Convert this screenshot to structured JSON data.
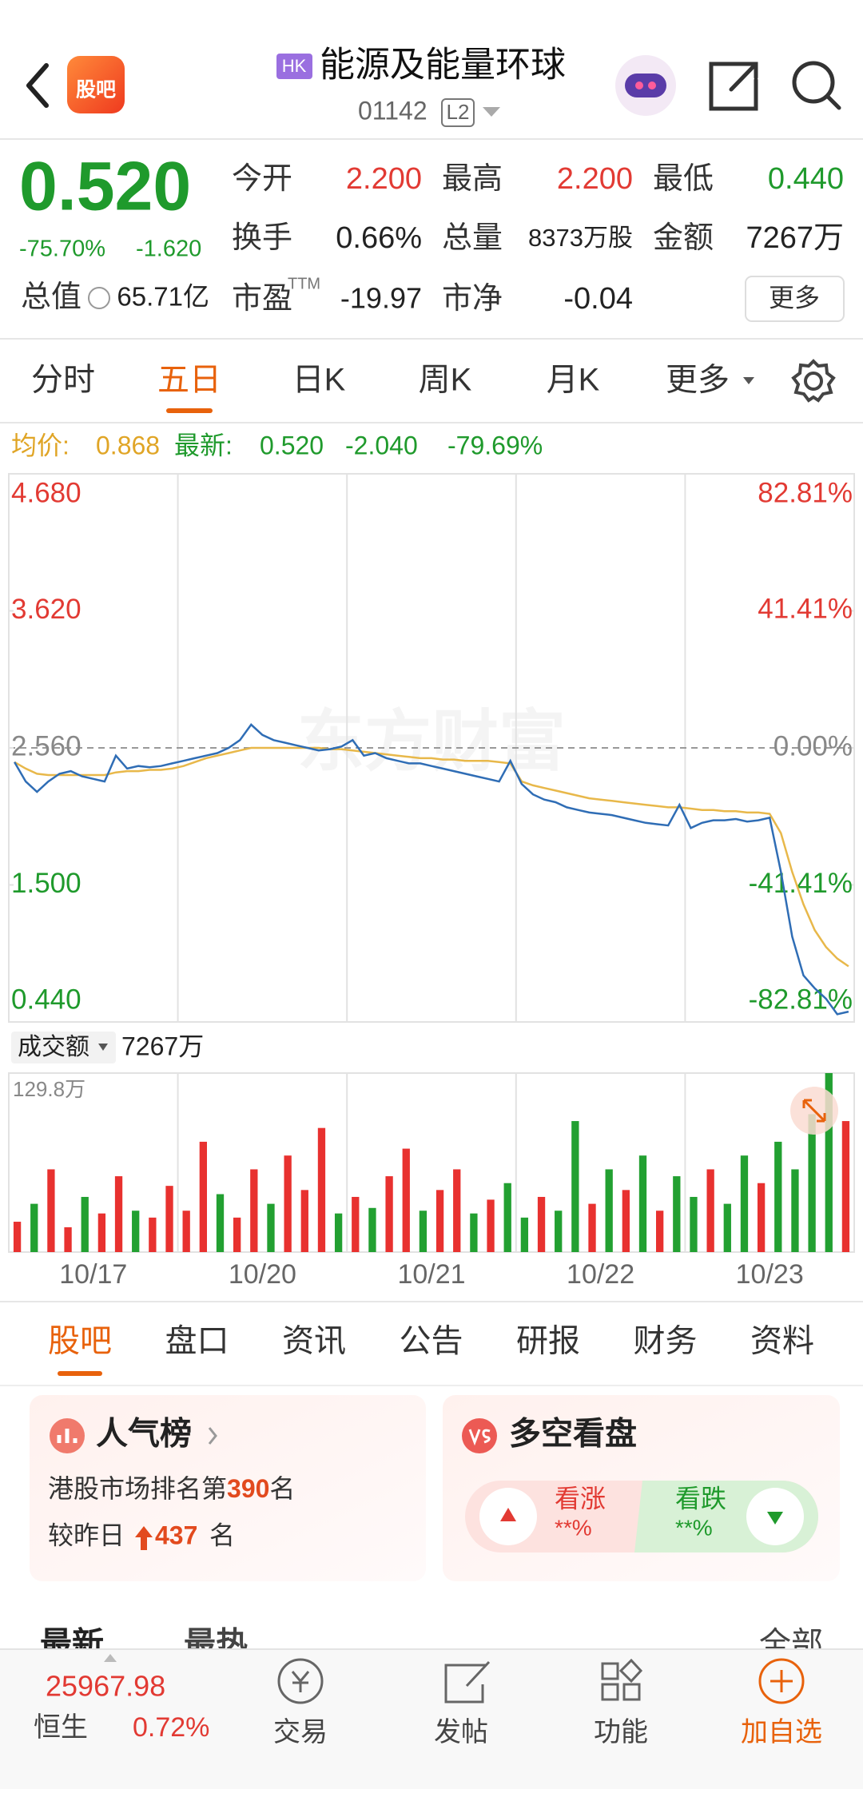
{
  "header": {
    "logo": "股吧",
    "market": "HK",
    "title": "能源及能量环球",
    "code": "01142",
    "level": "L2"
  },
  "quote": {
    "price": "0.520",
    "change_pct": "-75.70%",
    "change": "-1.620",
    "open_label": "今开",
    "open": "2.200",
    "high_label": "最高",
    "high": "2.200",
    "low_label": "最低",
    "low": "0.440",
    "turnover_label": "换手",
    "turnover": "0.66%",
    "volume_label": "总量",
    "volume": "8373万股",
    "amount_label": "金额",
    "amount": "7267万",
    "cap_label": "总值",
    "cap": "65.71亿",
    "pe_label": "市盈",
    "pe_sup": "TTM",
    "pe": "-19.97",
    "pb_label": "市净",
    "pb": "-0.04",
    "more": "更多"
  },
  "chart_tabs": [
    "分时",
    "五日",
    "日K",
    "周K",
    "月K",
    "更多"
  ],
  "info": {
    "avg_label": "均价:",
    "avg": "0.868",
    "last_label": "最新:",
    "last": "0.520",
    "change": "-2.040",
    "change_pct": "-79.69%"
  },
  "chart_data": [
    {
      "type": "line",
      "watermark": "东方财富",
      "ylim": [
        0.44,
        4.68
      ],
      "yticks": [
        {
          "value": 4.68,
          "label": "4.680"
        },
        {
          "value": 3.62,
          "label": "3.620"
        },
        {
          "value": 2.56,
          "label": "2.560"
        },
        {
          "value": 1.5,
          "label": "1.500"
        },
        {
          "value": 0.44,
          "label": "0.440"
        }
      ],
      "y2lim": [
        -82.81,
        82.81
      ],
      "y2ticks": [
        {
          "value": 82.81,
          "label": "82.81%"
        },
        {
          "value": 41.41,
          "label": "41.41%"
        },
        {
          "value": 0,
          "label": "0.00%"
        },
        {
          "value": -41.41,
          "label": "-41.41%"
        },
        {
          "value": -82.81,
          "label": "-82.81%"
        }
      ],
      "prev_close": 2.56,
      "series": [
        {
          "color": "#2f6db5",
          "values": [
            2.45,
            2.3,
            2.22,
            2.3,
            2.36,
            2.38,
            2.34,
            2.32,
            2.3,
            2.5,
            2.4,
            2.42,
            2.41,
            2.42,
            2.44,
            2.46,
            2.48,
            2.5,
            2.52,
            2.56,
            2.62,
            2.74,
            2.66,
            2.62,
            2.6,
            2.58,
            2.56,
            2.54,
            2.55,
            2.57,
            2.62,
            2.5,
            2.52,
            2.48,
            2.46,
            2.44,
            2.44,
            2.42,
            2.4,
            2.38,
            2.36,
            2.34,
            2.32,
            2.3,
            2.46,
            2.28,
            2.2,
            2.16,
            2.14,
            2.1,
            2.08,
            2.06,
            2.05,
            2.04,
            2.02,
            2.0,
            1.98,
            1.97,
            1.96,
            2.12,
            1.94,
            1.98,
            2.0,
            2.0,
            2.01,
            1.99,
            2.0,
            2.02,
            1.6,
            1.1,
            0.8,
            0.7,
            0.62,
            0.5,
            0.52
          ]
        },
        {
          "color": "#e8b84a",
          "values": [
            2.45,
            2.4,
            2.36,
            2.35,
            2.35,
            2.35,
            2.35,
            2.35,
            2.35,
            2.37,
            2.38,
            2.38,
            2.39,
            2.39,
            2.4,
            2.42,
            2.45,
            2.48,
            2.5,
            2.52,
            2.54,
            2.56,
            2.56,
            2.56,
            2.56,
            2.56,
            2.56,
            2.56,
            2.55,
            2.55,
            2.54,
            2.53,
            2.52,
            2.51,
            2.5,
            2.49,
            2.48,
            2.48,
            2.47,
            2.47,
            2.46,
            2.46,
            2.46,
            2.45,
            2.44,
            2.3,
            2.27,
            2.25,
            2.23,
            2.21,
            2.19,
            2.17,
            2.16,
            2.15,
            2.14,
            2.13,
            2.12,
            2.11,
            2.1,
            2.1,
            2.09,
            2.08,
            2.08,
            2.07,
            2.07,
            2.06,
            2.06,
            2.05,
            1.9,
            1.6,
            1.35,
            1.15,
            1.02,
            0.93,
            0.87
          ]
        }
      ]
    },
    {
      "type": "bar",
      "title": "成交额",
      "total": "7267万",
      "ylim": [
        0,
        129.8
      ],
      "yticks": [
        {
          "value": 129.8,
          "label": "129.8万"
        }
      ],
      "day_labels": [
        "10/17",
        "10/20",
        "10/21",
        "10/22",
        "10/23"
      ],
      "values": [
        22,
        35,
        60,
        18,
        40,
        28,
        55,
        30,
        25,
        48,
        30,
        80,
        42,
        25,
        60,
        35,
        70,
        45,
        90,
        28,
        40,
        32,
        55,
        75,
        30,
        45,
        60,
        28,
        38,
        50,
        25,
        40,
        30,
        95,
        35,
        60,
        45,
        70,
        30,
        55,
        40,
        60,
        35,
        70,
        50,
        80,
        60,
        100,
        129.8,
        95
      ],
      "colors": [
        "#e8312f",
        "#22a031",
        "#e8312f",
        "#e8312f",
        "#22a031",
        "#e8312f",
        "#e8312f",
        "#22a031",
        "#e8312f",
        "#e8312f",
        "#e8312f",
        "#e8312f",
        "#22a031",
        "#e8312f",
        "#e8312f",
        "#22a031",
        "#e8312f",
        "#e8312f",
        "#e8312f",
        "#22a031",
        "#e8312f",
        "#22a031",
        "#e8312f",
        "#e8312f",
        "#22a031",
        "#e8312f",
        "#e8312f",
        "#22a031",
        "#e8312f",
        "#22a031",
        "#22a031",
        "#e8312f",
        "#22a031",
        "#22a031",
        "#e8312f",
        "#22a031",
        "#e8312f",
        "#22a031",
        "#e8312f",
        "#22a031",
        "#22a031",
        "#e8312f",
        "#22a031",
        "#22a031",
        "#e8312f",
        "#22a031",
        "#22a031",
        "#22a031",
        "#22a031",
        "#e8312f"
      ]
    }
  ],
  "content_tabs": [
    "股吧",
    "盘口",
    "资讯",
    "公告",
    "研报",
    "财务",
    "资料"
  ],
  "popularity": {
    "title": "人气榜",
    "rank_prefix": "港股市场排名第",
    "rank": "390",
    "rank_suffix": "名",
    "change_prefix": "较昨日",
    "change": "437",
    "change_suffix": "名"
  },
  "sentiment": {
    "title": "多空看盘",
    "bull_label": "看涨",
    "bull_value": "**%",
    "bear_label": "看跌",
    "bear_value": "**%"
  },
  "feed_tabs": {
    "latest": "最新",
    "hot": "最热",
    "all": "全部"
  },
  "bottom_bar": {
    "index_value": "25967.98",
    "index_name": "恒生",
    "index_change": "0.72%",
    "trade": "交易",
    "post": "发帖",
    "tools": "功能",
    "watch": "加自选"
  }
}
